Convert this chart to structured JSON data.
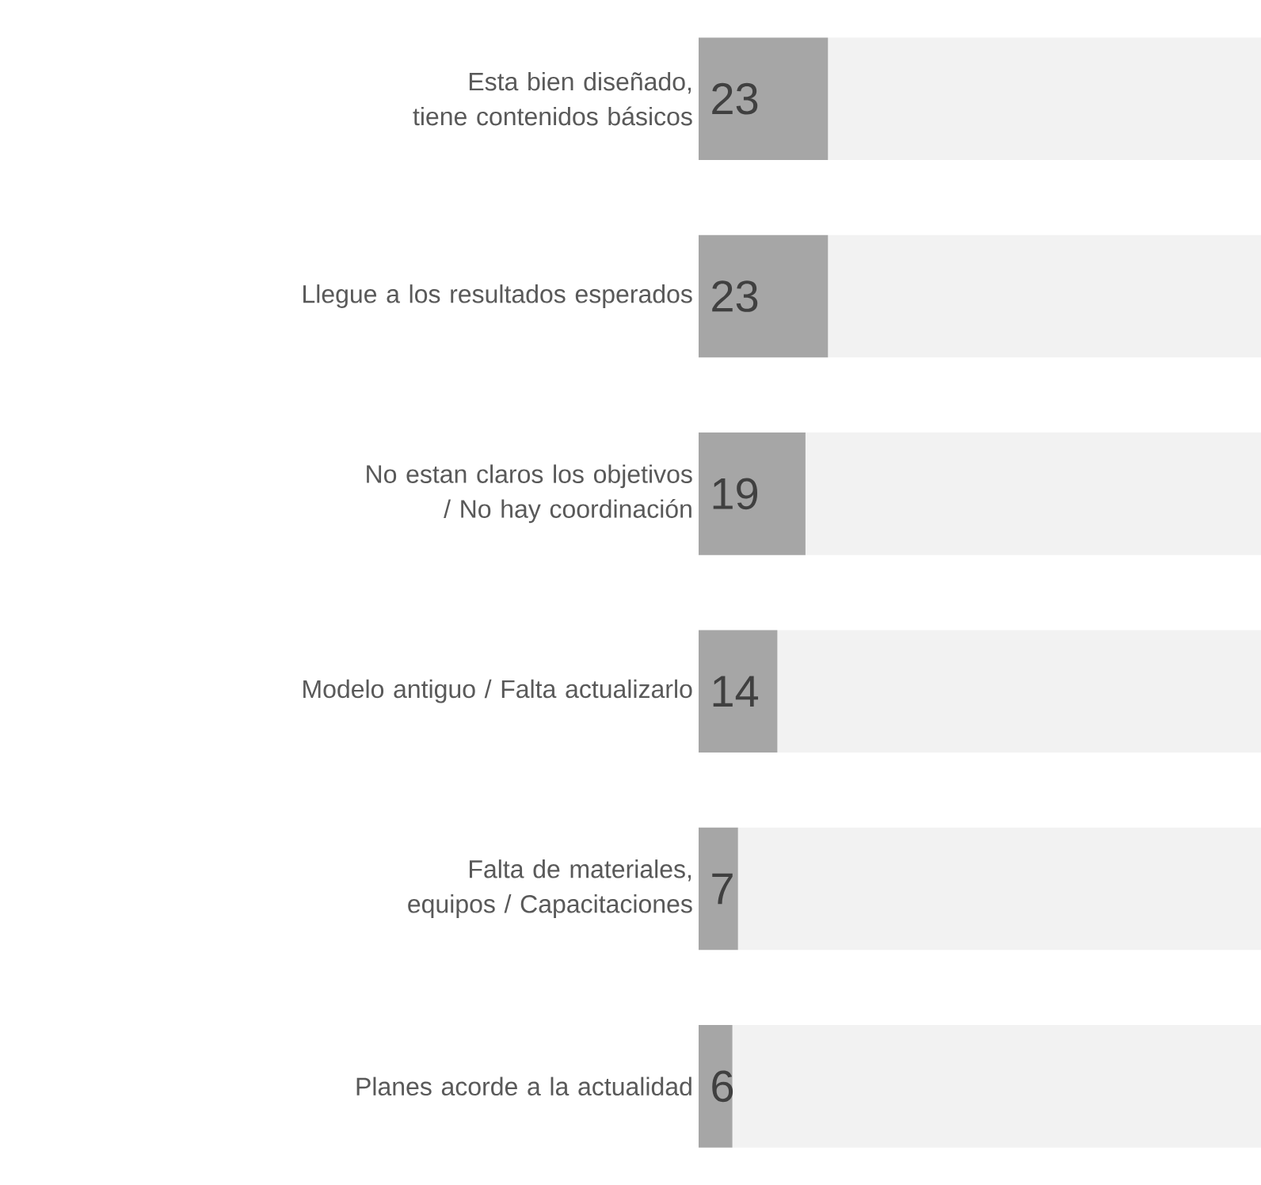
{
  "chart_data": {
    "type": "bar",
    "orientation": "horizontal",
    "stacked": true,
    "categories": [
      "Esta bien diseñado, tiene contenidos básicos",
      "Llegue a los resultados esperados",
      "No estan claros los objetivos / No hay coordinación",
      "Modelo antiguo / Falta actualizarlo",
      "Falta de materiales, equipos / Capacitaciones",
      "Planes acorde a la actualidad"
    ],
    "series": [
      {
        "color": "#a6a6a6",
        "values": [
          23,
          23,
          19,
          14,
          7,
          6
        ],
        "value_labels": [
          "23",
          "23",
          "19",
          "14",
          "7",
          "6"
        ]
      },
      {
        "color": "#f2f2f2",
        "values": [
          77,
          77,
          81,
          86,
          93,
          94
        ]
      }
    ],
    "xlim": [
      0,
      100
    ],
    "tick_labels": "y"
  }
}
